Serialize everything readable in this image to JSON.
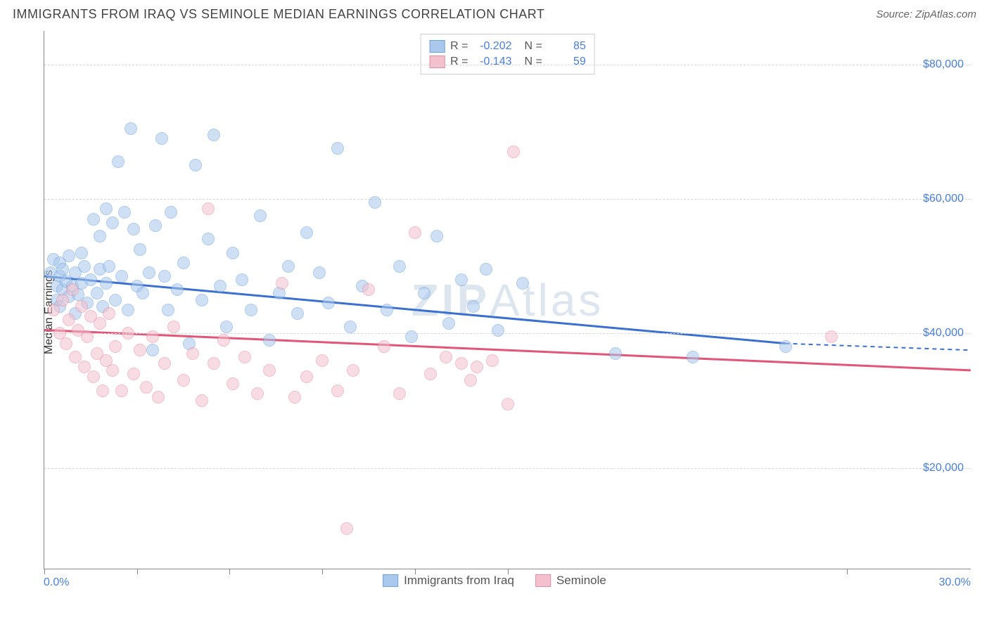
{
  "title": "IMMIGRANTS FROM IRAQ VS SEMINOLE MEDIAN EARNINGS CORRELATION CHART",
  "source": "Source: ZipAtlas.com",
  "ylabel": "Median Earnings",
  "watermark_bold": "ZIP",
  "watermark_light": "Atlas",
  "chart": {
    "type": "scatter-correlation",
    "xlim": [
      0,
      30
    ],
    "ylim": [
      5000,
      85000
    ],
    "x_tick_positions": [
      0,
      3,
      6,
      9,
      12,
      15,
      26
    ],
    "x_min_label": "0.0%",
    "x_max_label": "30.0%",
    "y_ticks": [
      20000,
      40000,
      60000,
      80000
    ],
    "y_tick_labels": [
      "$20,000",
      "$40,000",
      "$60,000",
      "$80,000"
    ],
    "grid_color": "#d8d8d8",
    "axis_color": "#888888",
    "background_color": "#ffffff",
    "label_color": "#4a7fd8",
    "title_fontsize": 18,
    "label_fontsize": 16,
    "point_radius": 9,
    "point_opacity": 0.55
  },
  "series": [
    {
      "name": "Immigrants from Iraq",
      "color_fill": "#a9c8ec",
      "color_stroke": "#6fa3dd",
      "R": "-0.202",
      "N": "85",
      "trend": {
        "x1": 0,
        "y1": 48500,
        "x2_solid": 24,
        "y2_solid": 38500,
        "x2_dash": 30,
        "y2_dash": 37500,
        "stroke": "#3b6fd0",
        "width": 3
      },
      "points": [
        [
          0.2,
          49000
        ],
        [
          0.3,
          51000
        ],
        [
          0.4,
          47000
        ],
        [
          0.4,
          45000
        ],
        [
          0.5,
          48500
        ],
        [
          0.5,
          50500
        ],
        [
          0.5,
          44000
        ],
        [
          0.6,
          46500
        ],
        [
          0.6,
          49500
        ],
        [
          0.7,
          47800
        ],
        [
          0.8,
          45500
        ],
        [
          0.8,
          51500
        ],
        [
          0.9,
          47000
        ],
        [
          1.0,
          49000
        ],
        [
          1.0,
          43000
        ],
        [
          1.1,
          45800
        ],
        [
          1.2,
          52000
        ],
        [
          1.2,
          47500
        ],
        [
          1.3,
          50000
        ],
        [
          1.4,
          44500
        ],
        [
          1.5,
          48000
        ],
        [
          1.6,
          57000
        ],
        [
          1.7,
          46000
        ],
        [
          1.8,
          54500
        ],
        [
          1.8,
          49500
        ],
        [
          1.9,
          44000
        ],
        [
          2.0,
          58500
        ],
        [
          2.0,
          47500
        ],
        [
          2.1,
          50000
        ],
        [
          2.2,
          56500
        ],
        [
          2.3,
          45000
        ],
        [
          2.4,
          65500
        ],
        [
          2.5,
          48500
        ],
        [
          2.6,
          58000
        ],
        [
          2.7,
          43500
        ],
        [
          2.8,
          70500
        ],
        [
          2.9,
          55500
        ],
        [
          3.0,
          47000
        ],
        [
          3.1,
          52500
        ],
        [
          3.2,
          46000
        ],
        [
          3.4,
          49000
        ],
        [
          3.5,
          37500
        ],
        [
          3.6,
          56000
        ],
        [
          3.8,
          69000
        ],
        [
          3.9,
          48500
        ],
        [
          4.0,
          43500
        ],
        [
          4.1,
          58000
        ],
        [
          4.3,
          46500
        ],
        [
          4.5,
          50500
        ],
        [
          4.7,
          38500
        ],
        [
          4.9,
          65000
        ],
        [
          5.1,
          45000
        ],
        [
          5.3,
          54000
        ],
        [
          5.5,
          69500
        ],
        [
          5.7,
          47000
        ],
        [
          5.9,
          41000
        ],
        [
          6.1,
          52000
        ],
        [
          6.4,
          48000
        ],
        [
          6.7,
          43500
        ],
        [
          7.0,
          57500
        ],
        [
          7.3,
          39000
        ],
        [
          7.6,
          46000
        ],
        [
          7.9,
          50000
        ],
        [
          8.2,
          43000
        ],
        [
          8.5,
          55000
        ],
        [
          8.9,
          49000
        ],
        [
          9.2,
          44500
        ],
        [
          9.5,
          67500
        ],
        [
          9.9,
          41000
        ],
        [
          10.3,
          47000
        ],
        [
          10.7,
          59500
        ],
        [
          11.1,
          43500
        ],
        [
          11.5,
          50000
        ],
        [
          11.9,
          39500
        ],
        [
          12.3,
          46000
        ],
        [
          12.7,
          54500
        ],
        [
          13.1,
          41500
        ],
        [
          13.5,
          48000
        ],
        [
          13.9,
          44000
        ],
        [
          14.3,
          49500
        ],
        [
          14.7,
          40500
        ],
        [
          15.5,
          47500
        ],
        [
          18.5,
          37000
        ],
        [
          21.0,
          36500
        ],
        [
          24.0,
          38000
        ]
      ]
    },
    {
      "name": "Seminole",
      "color_fill": "#f4c0cd",
      "color_stroke": "#e88ba6",
      "R": "-0.143",
      "N": "59",
      "trend": {
        "x1": 0,
        "y1": 40500,
        "x2_solid": 30,
        "y2_solid": 34500,
        "x2_dash": 30,
        "y2_dash": 34500,
        "stroke": "#e05578",
        "width": 3
      },
      "points": [
        [
          0.3,
          43500
        ],
        [
          0.5,
          40000
        ],
        [
          0.6,
          45000
        ],
        [
          0.7,
          38500
        ],
        [
          0.8,
          42000
        ],
        [
          0.9,
          46500
        ],
        [
          1.0,
          36500
        ],
        [
          1.1,
          40500
        ],
        [
          1.2,
          44000
        ],
        [
          1.3,
          35000
        ],
        [
          1.4,
          39500
        ],
        [
          1.5,
          42500
        ],
        [
          1.6,
          33500
        ],
        [
          1.7,
          37000
        ],
        [
          1.8,
          41500
        ],
        [
          1.9,
          31500
        ],
        [
          2.0,
          36000
        ],
        [
          2.1,
          43000
        ],
        [
          2.2,
          34500
        ],
        [
          2.3,
          38000
        ],
        [
          2.5,
          31500
        ],
        [
          2.7,
          40000
        ],
        [
          2.9,
          34000
        ],
        [
          3.1,
          37500
        ],
        [
          3.3,
          32000
        ],
        [
          3.5,
          39500
        ],
        [
          3.7,
          30500
        ],
        [
          3.9,
          35500
        ],
        [
          4.2,
          41000
        ],
        [
          4.5,
          33000
        ],
        [
          4.8,
          37000
        ],
        [
          5.1,
          30000
        ],
        [
          5.3,
          58500
        ],
        [
          5.5,
          35500
        ],
        [
          5.8,
          39000
        ],
        [
          6.1,
          32500
        ],
        [
          6.5,
          36500
        ],
        [
          6.9,
          31000
        ],
        [
          7.3,
          34500
        ],
        [
          7.7,
          47500
        ],
        [
          8.1,
          30500
        ],
        [
          8.5,
          33500
        ],
        [
          9.0,
          36000
        ],
        [
          9.5,
          31500
        ],
        [
          10.0,
          34500
        ],
        [
          10.5,
          46500
        ],
        [
          11.0,
          38000
        ],
        [
          11.5,
          31000
        ],
        [
          12.0,
          55000
        ],
        [
          12.5,
          34000
        ],
        [
          13.0,
          36500
        ],
        [
          13.5,
          35500
        ],
        [
          13.8,
          33000
        ],
        [
          14.0,
          35000
        ],
        [
          14.5,
          36000
        ],
        [
          15.0,
          29500
        ],
        [
          15.2,
          67000
        ],
        [
          25.5,
          39500
        ],
        [
          9.8,
          11000
        ]
      ]
    }
  ],
  "bottom_legend": [
    {
      "label": "Immigrants from Iraq",
      "fill": "#a9c8ec",
      "stroke": "#6fa3dd"
    },
    {
      "label": "Seminole",
      "fill": "#f4c0cd",
      "stroke": "#e88ba6"
    }
  ]
}
